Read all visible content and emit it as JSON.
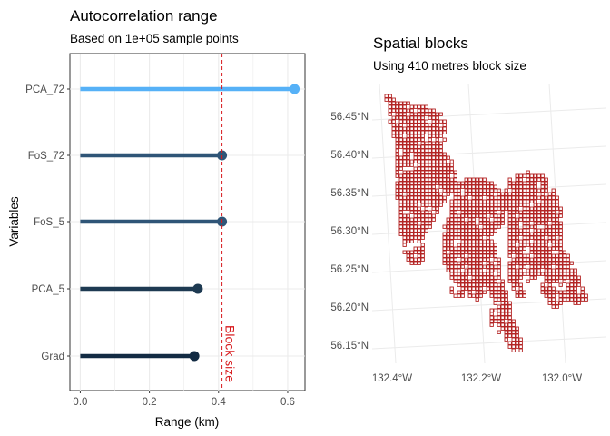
{
  "chart_data": [
    {
      "type": "lollipop",
      "title": "Autocorrelation range",
      "subtitle": "Based on 1e+05 sample points",
      "xlabel": "Range (km)",
      "ylabel": "Variables",
      "xlim": [
        -0.03,
        0.65
      ],
      "x_ticks": [
        "0.0",
        "0.2",
        "0.4",
        "0.6"
      ],
      "x_tick_values": [
        0,
        0.2,
        0.4,
        0.6
      ],
      "categories": [
        "PCA_72",
        "FoS_72",
        "FoS_5",
        "PCA_5",
        "Grad"
      ],
      "values": [
        0.62,
        0.41,
        0.41,
        0.34,
        0.33
      ],
      "colors": [
        "#56b1f7",
        "#2f5577",
        "#2f5577",
        "#1e3a52",
        "#132b43"
      ],
      "reference_line": {
        "value": 0.41,
        "label": "Block size",
        "color": "#d7191c"
      },
      "grid": true
    },
    {
      "type": "map",
      "title": "Spatial blocks",
      "subtitle": "Using 410 metres block size",
      "y_ticks": [
        "56.45°N",
        "56.40°N",
        "56.35°N",
        "56.30°N",
        "56.25°N",
        "56.20°N",
        "56.15°N"
      ],
      "y_tick_values": [
        56.45,
        56.4,
        56.35,
        56.3,
        56.25,
        56.2,
        56.15
      ],
      "x_ticks": [
        "132.4°W",
        "132.2°W",
        "132.0°W"
      ],
      "x_tick_values": [
        -132.4,
        -132.2,
        -132.0
      ],
      "block_color": "#b22222",
      "grid": true
    }
  ]
}
